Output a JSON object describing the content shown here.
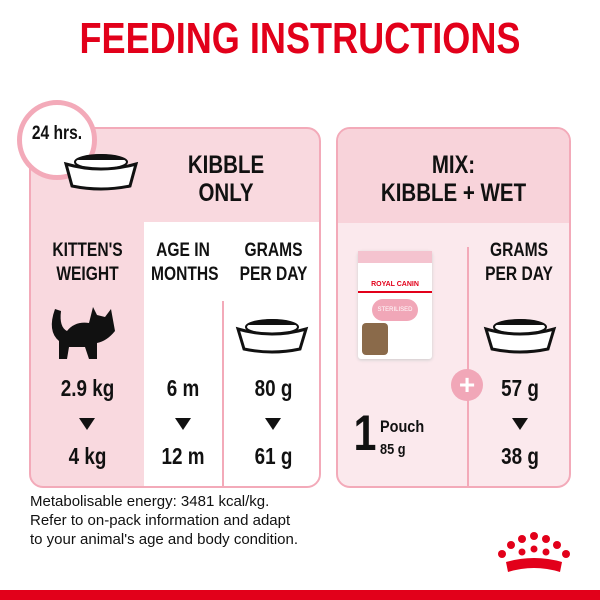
{
  "title": "FEEDING INSTRUCTIONS",
  "clock_label": "24 hrs.",
  "kibble": {
    "header_line1": "KIBBLE",
    "header_line2": "ONLY",
    "col_weight": [
      "KITTEN'S",
      "WEIGHT"
    ],
    "col_age": [
      "AGE IN",
      "MONTHS"
    ],
    "col_grams": [
      "GRAMS",
      "PER DAY"
    ],
    "rows": [
      {
        "weight": "2.9 kg",
        "age": "6 m",
        "grams": "80 g"
      },
      {
        "weight": "4 kg",
        "age": "12 m",
        "grams": "61 g"
      }
    ]
  },
  "mix": {
    "header_line1": "MIX:",
    "header_line2": "KIBBLE + WET",
    "col_grams": [
      "GRAMS",
      "PER DAY"
    ],
    "pouch_count": "1",
    "pouch_label": "Pouch",
    "pouch_weight": "85 g",
    "product_brand": "ROYAL CANIN",
    "product_name": "STERILISED",
    "rows": [
      {
        "grams": "57 g"
      },
      {
        "grams": "38 g"
      }
    ]
  },
  "footer": [
    "Metabolisable energy: 3481 kcal/kg.",
    "Refer to on-pack information and adapt",
    "to your animal's age and body condition."
  ],
  "colors": {
    "brand_red": "#e2001a",
    "pink": "#f3aab9",
    "light_pink": "#f9d9df"
  },
  "icons": [
    "clock-icon",
    "bowl-icon",
    "kitten-icon",
    "pouch-icon",
    "plus-icon",
    "arrow-down-icon",
    "royal-canin-crown-logo"
  ]
}
